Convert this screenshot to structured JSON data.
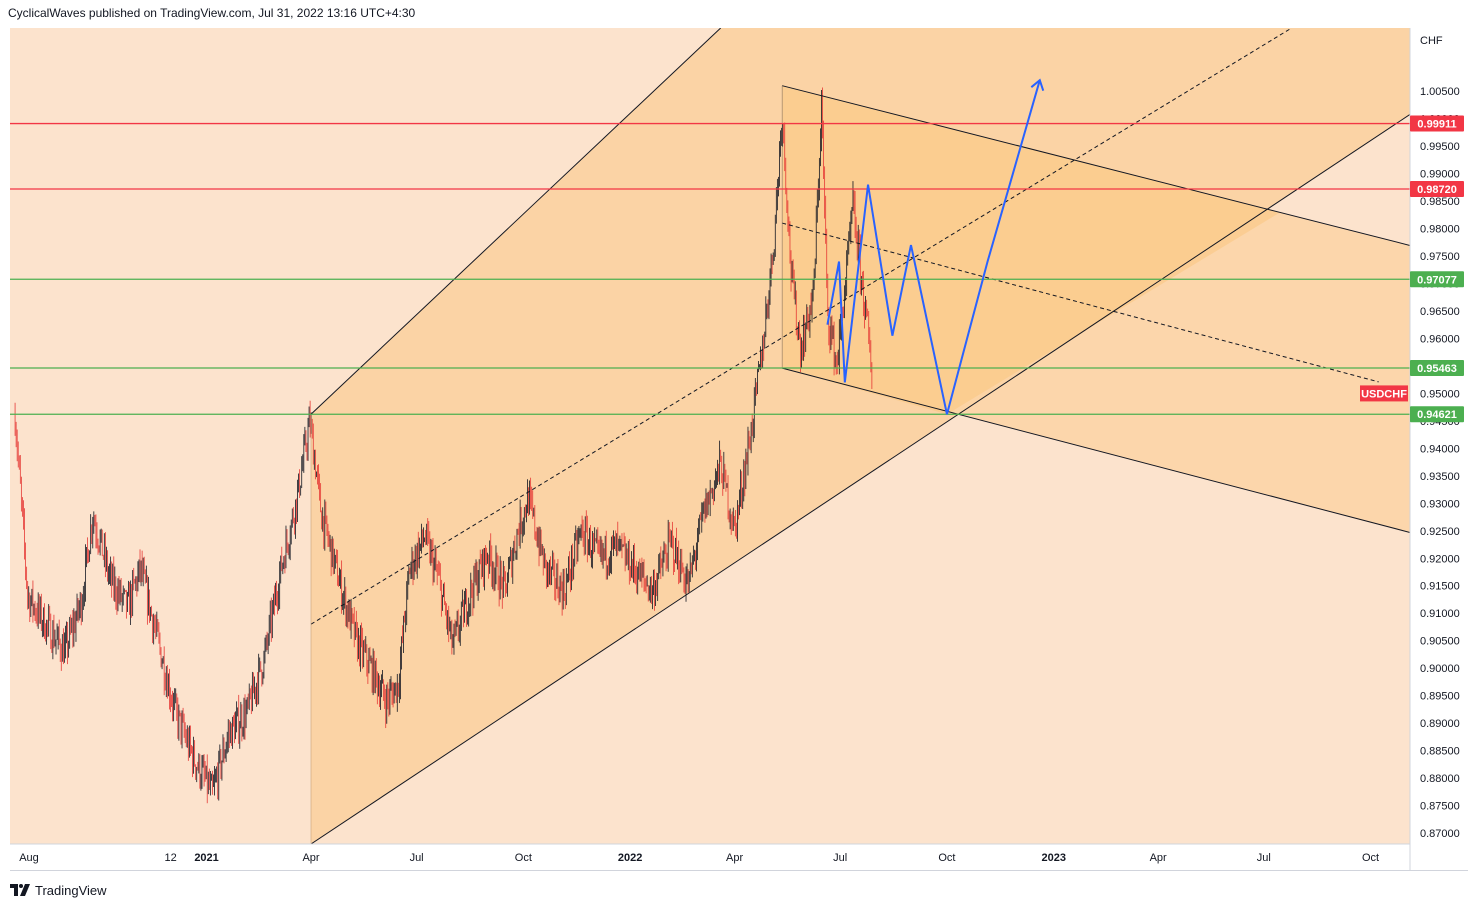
{
  "header": {
    "text": "CyclicalWaves published on TradingView.com, Jul 31, 2022 13:16 UTC+4:30"
  },
  "footer": {
    "brand": "TradingView",
    "logo_icon": "tradingview-logo-icon"
  },
  "colors": {
    "background": "#fce3cd",
    "channel_fill": "#fbd3a5",
    "triangle_fill": "#f9c680",
    "red_level": "#f23645",
    "green_level": "#4caf50",
    "projection": "#2962ff",
    "candle_up": "#131722",
    "candle_down": "#e53935"
  },
  "chart_data": {
    "type": "candlestick",
    "symbol": "USDCHF",
    "currency_label": "CHF",
    "y_axis": {
      "ylim": [
        0.868,
        1.0165
      ],
      "ticks": [
        "0.87000",
        "0.87500",
        "0.88000",
        "0.88500",
        "0.89000",
        "0.89500",
        "0.90000",
        "0.90500",
        "0.91000",
        "0.91500",
        "0.92000",
        "0.92500",
        "0.93000",
        "0.93500",
        "0.94000",
        "0.94500",
        "0.95000",
        "0.95500",
        "0.96000",
        "0.96500",
        "0.97000",
        "0.97500",
        "0.98000",
        "0.98500",
        "0.99000",
        "0.99500",
        "1.00000",
        "1.00500"
      ]
    },
    "x_axis": {
      "ticks": [
        {
          "label": "Aug",
          "date": "2020-08-01",
          "bold": false
        },
        {
          "label": "12",
          "date": "2020-12-01",
          "bold": false
        },
        {
          "label": "2021",
          "date": "2021-01-01",
          "bold": true
        },
        {
          "label": "Apr",
          "date": "2021-04-01",
          "bold": false
        },
        {
          "label": "Jul",
          "date": "2021-07-01",
          "bold": false
        },
        {
          "label": "Oct",
          "date": "2021-10-01",
          "bold": false
        },
        {
          "label": "2022",
          "date": "2022-01-01",
          "bold": true
        },
        {
          "label": "Apr",
          "date": "2022-04-01",
          "bold": false
        },
        {
          "label": "Jul",
          "date": "2022-07-01",
          "bold": false
        },
        {
          "label": "Oct",
          "date": "2022-10-01",
          "bold": false
        },
        {
          "label": "2023",
          "date": "2023-01-01",
          "bold": true
        },
        {
          "label": "Apr",
          "date": "2023-04-01",
          "bold": false
        },
        {
          "label": "Jul",
          "date": "2023-07-01",
          "bold": false
        },
        {
          "label": "Oct",
          "date": "2023-10-01",
          "bold": false
        }
      ]
    },
    "price_path": [
      [
        "2020-07-20",
        0.946
      ],
      [
        "2020-07-31",
        0.913
      ],
      [
        "2020-08-15",
        0.908
      ],
      [
        "2020-09-01",
        0.903
      ],
      [
        "2020-09-15",
        0.912
      ],
      [
        "2020-09-25",
        0.928
      ],
      [
        "2020-10-10",
        0.916
      ],
      [
        "2020-10-25",
        0.911
      ],
      [
        "2020-11-05",
        0.918
      ],
      [
        "2020-11-20",
        0.905
      ],
      [
        "2020-12-05",
        0.892
      ],
      [
        "2020-12-20",
        0.884
      ],
      [
        "2021-01-06",
        0.877
      ],
      [
        "2021-01-20",
        0.888
      ],
      [
        "2021-02-05",
        0.892
      ],
      [
        "2021-02-20",
        0.902
      ],
      [
        "2021-03-05",
        0.917
      ],
      [
        "2021-03-20",
        0.931
      ],
      [
        "2021-03-31",
        0.945
      ],
      [
        "2021-04-10",
        0.928
      ],
      [
        "2021-04-25",
        0.916
      ],
      [
        "2021-05-10",
        0.905
      ],
      [
        "2021-05-25",
        0.899
      ],
      [
        "2021-06-05",
        0.894
      ],
      [
        "2021-06-15",
        0.897
      ],
      [
        "2021-06-25",
        0.918
      ],
      [
        "2021-07-08",
        0.924
      ],
      [
        "2021-07-20",
        0.916
      ],
      [
        "2021-08-01",
        0.904
      ],
      [
        "2021-08-15",
        0.913
      ],
      [
        "2021-08-31",
        0.921
      ],
      [
        "2021-09-15",
        0.914
      ],
      [
        "2021-09-25",
        0.924
      ],
      [
        "2021-10-05",
        0.931
      ],
      [
        "2021-10-20",
        0.918
      ],
      [
        "2021-11-05",
        0.914
      ],
      [
        "2021-11-20",
        0.925
      ],
      [
        "2021-12-05",
        0.92
      ],
      [
        "2021-12-20",
        0.922
      ],
      [
        "2022-01-05",
        0.918
      ],
      [
        "2022-01-20",
        0.914
      ],
      [
        "2022-02-05",
        0.923
      ],
      [
        "2022-02-20",
        0.915
      ],
      [
        "2022-03-05",
        0.928
      ],
      [
        "2022-03-20",
        0.937
      ],
      [
        "2022-04-01",
        0.925
      ],
      [
        "2022-04-15",
        0.943
      ],
      [
        "2022-04-25",
        0.958
      ],
      [
        "2022-05-05",
        0.978
      ],
      [
        "2022-05-12",
        1.0015
      ],
      [
        "2022-05-20",
        0.971
      ],
      [
        "2022-05-28",
        0.958
      ],
      [
        "2022-06-08",
        0.968
      ],
      [
        "2022-06-15",
        1.003
      ],
      [
        "2022-06-20",
        0.965
      ],
      [
        "2022-06-28",
        0.955
      ],
      [
        "2022-07-05",
        0.969
      ],
      [
        "2022-07-12",
        0.984
      ],
      [
        "2022-07-18",
        0.973
      ],
      [
        "2022-07-25",
        0.961
      ],
      [
        "2022-07-29",
        0.951
      ]
    ],
    "horizontal_levels": [
      {
        "value": 0.99911,
        "label": "0.99911",
        "color": "red"
      },
      {
        "value": 0.9872,
        "label": "0.98720",
        "color": "red"
      },
      {
        "value": 0.97077,
        "label": "0.97077",
        "color": "green"
      },
      {
        "value": 0.95463,
        "label": "0.95463",
        "color": "green"
      },
      {
        "value": 0.94621,
        "label": "0.94621",
        "color": "green"
      }
    ],
    "symbol_label": "USDCHF",
    "ascending_channel": {
      "upper_start": [
        "2021-04-01",
        0.94621
      ],
      "upper_end": [
        "2022-03-20",
        1.0165
      ],
      "lower_start": [
        "2021-04-01",
        0.868
      ],
      "lower_end": [
        "2023-10-01",
        0.996
      ],
      "midline_start": [
        "2021-04-01",
        0.908
      ],
      "midline_end": [
        "2023-07-25",
        1.0165
      ]
    },
    "descending_channel": {
      "upper_start": [
        "2022-05-12",
        1.006
      ],
      "upper_end": [
        "2023-10-15",
        0.978
      ],
      "lower_start": [
        "2022-05-12",
        0.9546
      ],
      "lower_end": [
        "2023-10-15",
        0.9258
      ],
      "midline_start": [
        "2022-05-12",
        0.981
      ],
      "midline_end": [
        "2023-10-15",
        0.9517
      ]
    },
    "projection_path": [
      [
        "2022-06-20",
        0.9625
      ],
      [
        "2022-06-30",
        0.974
      ],
      [
        "2022-07-05",
        0.952
      ],
      [
        "2022-07-25",
        0.988
      ],
      [
        "2022-08-15",
        0.9605
      ],
      [
        "2022-08-31",
        0.977
      ],
      [
        "2022-10-01",
        0.94621
      ],
      [
        "2022-11-05",
        0.974
      ],
      [
        "2022-12-20",
        1.007
      ]
    ]
  }
}
